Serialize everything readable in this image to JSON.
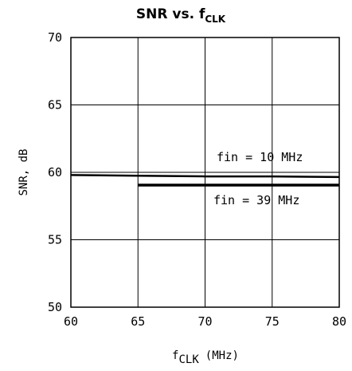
{
  "chart_data": {
    "type": "line",
    "title": {
      "main": "SNR vs. f",
      "sub": "CLK"
    },
    "xlabel": {
      "main": "f",
      "sub": "CLK",
      "unit": "(MHz)"
    },
    "ylabel": "SNR, dB",
    "xlim": [
      60,
      80
    ],
    "ylim": [
      50,
      70
    ],
    "x_ticks": [
      60,
      65,
      70,
      75,
      80
    ],
    "y_ticks": [
      50,
      55,
      60,
      65,
      70
    ],
    "grid": true,
    "series": [
      {
        "name": "fin = 10 MHz",
        "x": [
          60,
          65,
          70,
          75,
          80
        ],
        "y": [
          59.8,
          59.75,
          59.7,
          59.7,
          59.65
        ],
        "color": "#000000"
      },
      {
        "name": "fin = 39 MHz",
        "x": [
          65,
          70,
          75,
          80
        ],
        "y": [
          59.05,
          59.05,
          59.05,
          59.05
        ],
        "color": "#000000"
      }
    ]
  }
}
